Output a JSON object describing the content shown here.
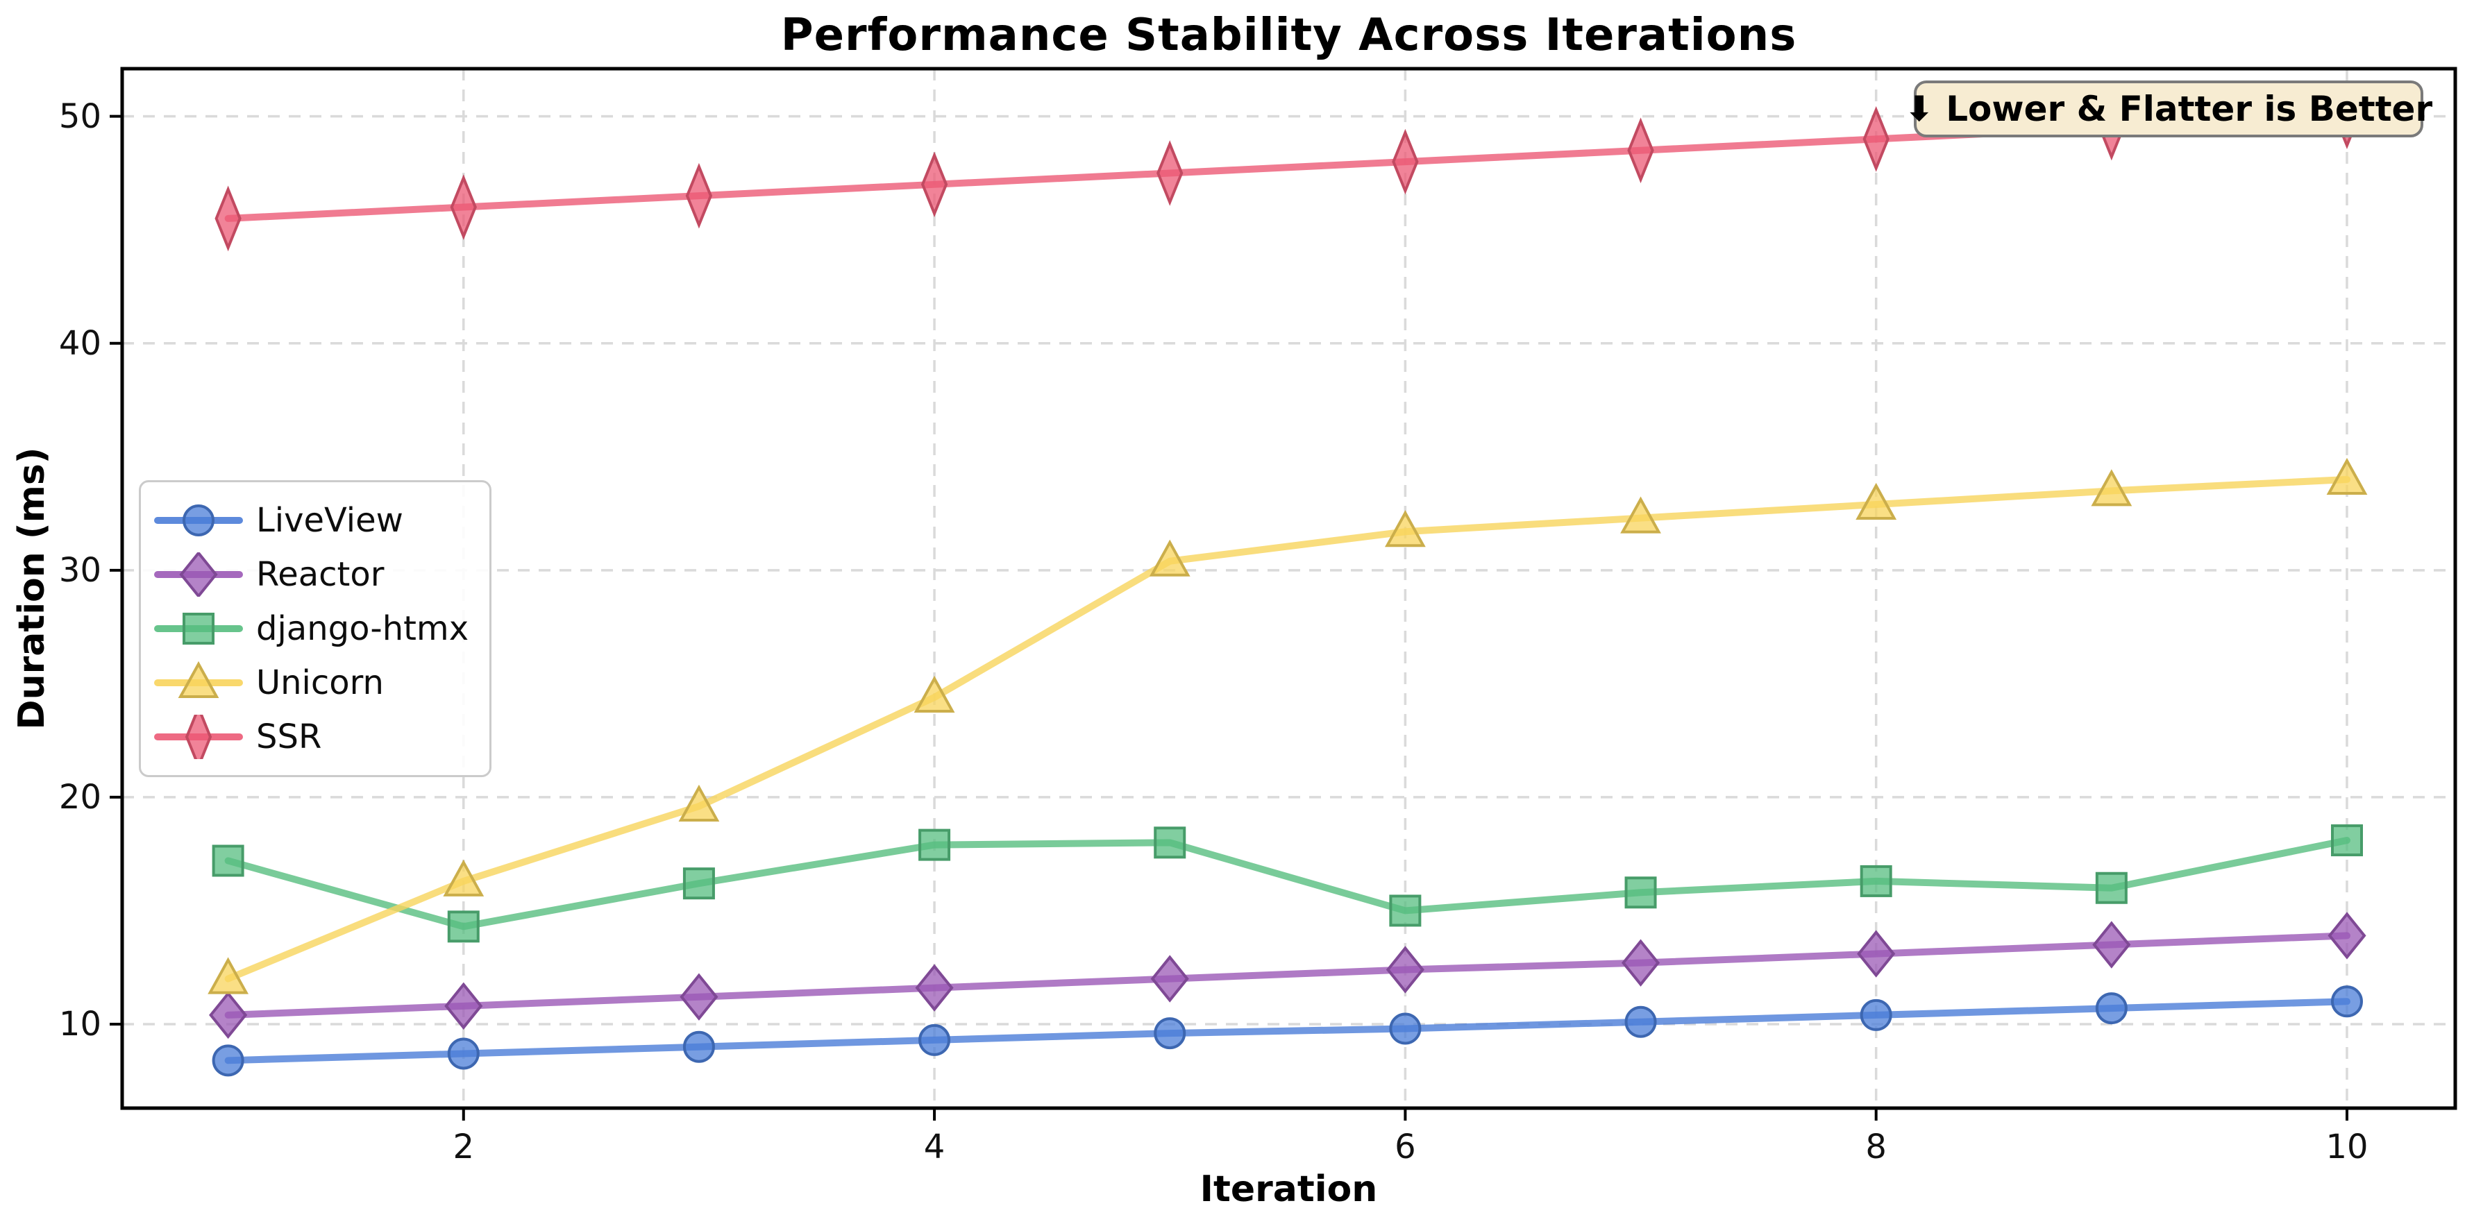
{
  "chart_data": {
    "type": "line",
    "title": "Performance Stability Across Iterations",
    "xlabel": "Iteration",
    "ylabel": "Duration (ms)",
    "x": [
      1,
      2,
      3,
      4,
      5,
      6,
      7,
      8,
      9,
      10
    ],
    "series": [
      {
        "name": "LiveView",
        "marker": "circle",
        "color": "#4B7DD8",
        "values": [
          8.4,
          8.7,
          9.0,
          9.3,
          9.6,
          9.8,
          10.1,
          10.4,
          10.7,
          11.0
        ]
      },
      {
        "name": "Reactor",
        "marker": "diamond",
        "color": "#9B59B6",
        "values": [
          10.4,
          10.8,
          11.2,
          11.6,
          12.0,
          12.4,
          12.7,
          13.1,
          13.5,
          13.9
        ]
      },
      {
        "name": "django-htmx",
        "marker": "square",
        "color": "#57BE80",
        "values": [
          17.2,
          14.3,
          16.2,
          17.9,
          18.0,
          15.0,
          15.8,
          16.3,
          16.0,
          18.1
        ]
      },
      {
        "name": "Unicorn",
        "marker": "triangle",
        "color": "#F8D45C",
        "values": [
          12.0,
          16.3,
          19.6,
          24.4,
          30.4,
          31.7,
          32.3,
          32.9,
          33.5,
          34.0
        ]
      },
      {
        "name": "SSR",
        "marker": "thin-diamond",
        "color": "#EC5A76",
        "values": [
          45.5,
          46.0,
          46.5,
          47.0,
          47.5,
          48.0,
          48.5,
          49.0,
          49.5,
          50.0
        ]
      }
    ],
    "xlim": [
      0.55,
      10.46
    ],
    "ylim": [
      6.3,
      52.1
    ],
    "xticks": [
      2,
      4,
      6,
      8,
      10
    ],
    "yticks": [
      10,
      20,
      30,
      40,
      50
    ],
    "grid": true,
    "grid_color": "#dadada",
    "spine_color": "#000000",
    "legend_position": "center left",
    "annotation": {
      "text": "⬇ Lower & Flatter is Better",
      "bg": "#f7ecd2",
      "border": "#7a7a7a"
    }
  }
}
